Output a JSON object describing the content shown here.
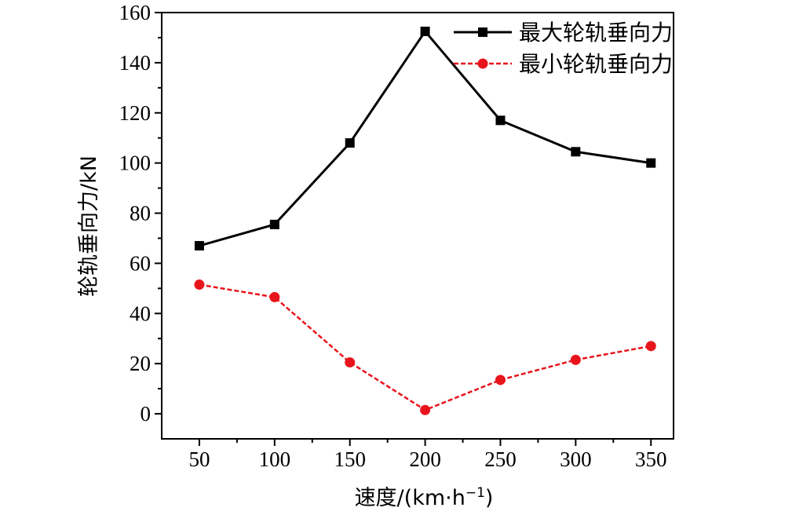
{
  "chart_data": {
    "type": "line",
    "title": "",
    "xlabel": "速度/(km·h",
    "xlabel_sup": "−1",
    "xlabel_close": ")",
    "ylabel": "轮轨垂向力/kN",
    "x": [
      50,
      100,
      150,
      200,
      250,
      300,
      350
    ],
    "x_ticks": [
      "50",
      "100",
      "150",
      "200",
      "250",
      "300",
      "350"
    ],
    "xlim": [
      25,
      365
    ],
    "ylim": [
      -10,
      160
    ],
    "y_ticks": [
      "0",
      "20",
      "40",
      "60",
      "80",
      "100",
      "120",
      "140",
      "160"
    ],
    "grid": false,
    "legend_position": "top-right",
    "series": [
      {
        "name": "最大轮轨垂向力",
        "values": [
          67,
          75.5,
          108,
          152.5,
          117,
          104.5,
          100
        ],
        "color": "#000000",
        "marker": "square",
        "line_style": "solid"
      },
      {
        "name": "最小轮轨垂向力",
        "values": [
          51.5,
          46.5,
          20.5,
          1.5,
          13.5,
          21.5,
          27
        ],
        "color": "#e8141c",
        "marker": "circle",
        "line_style": "dashed"
      }
    ]
  }
}
